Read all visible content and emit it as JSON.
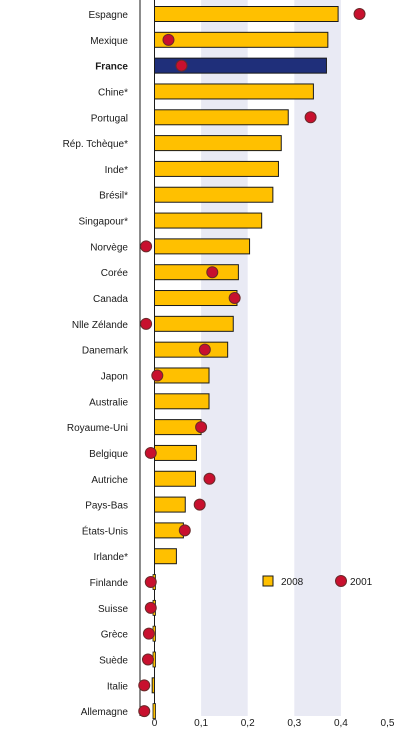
{
  "chart_data": {
    "type": "bar",
    "orientation": "horizontal",
    "categories": [
      "Espagne",
      "Mexique",
      "France",
      "Chine*",
      "Portugal",
      "Rép. Tchèque*",
      "Inde*",
      "Brésil*",
      "Singapour*",
      "Norvège",
      "Corée",
      "Canada",
      "Nlle Zélande",
      "Danemark",
      "Japon",
      "Australie",
      "Royaume-Uni",
      "Belgique",
      "Autriche",
      "Pays-Bas",
      "États-Unis",
      "Irlande*",
      "Finlande",
      "Suisse",
      "Grèce",
      "Suède",
      "Italie",
      "Allemagne"
    ],
    "highlight_category": "France",
    "series": [
      {
        "name": "2008",
        "kind": "bar",
        "values": [
          0.394,
          0.372,
          0.369,
          0.341,
          0.287,
          0.272,
          0.266,
          0.254,
          0.23,
          0.204,
          0.18,
          0.177,
          0.169,
          0.157,
          0.117,
          0.117,
          0.1,
          0.09,
          0.088,
          0.066,
          0.062,
          0.047,
          0.0,
          0.0,
          0.0,
          0.0,
          -0.005,
          0.0
        ]
      },
      {
        "name": "2001",
        "kind": "point",
        "values": [
          0.44,
          0.03,
          0.058,
          null,
          0.335,
          null,
          null,
          null,
          null,
          -0.018,
          0.124,
          0.172,
          -0.018,
          0.108,
          0.006,
          null,
          0.1,
          -0.008,
          0.118,
          0.097,
          0.065,
          null,
          -0.008,
          -0.008,
          -0.012,
          -0.014,
          -0.022,
          -0.022
        ]
      }
    ],
    "xticks": [
      "0",
      "0,1",
      "0,2",
      "0,3",
      "0,4",
      "0,5"
    ],
    "xtick_values": [
      0,
      0.1,
      0.2,
      0.3,
      0.4,
      0.5
    ],
    "xlim": [
      -0.03,
      0.5
    ],
    "grid": "alternating vertical bands",
    "legend_position": "bottom-right",
    "colors": {
      "bar": "#FFC000",
      "bar_highlight": "#1F2F7A",
      "bar_edge": "#1a1a1a",
      "point": "#C8102E",
      "point_edge": "#6a2a2a",
      "band": "#E9EAF4"
    }
  }
}
